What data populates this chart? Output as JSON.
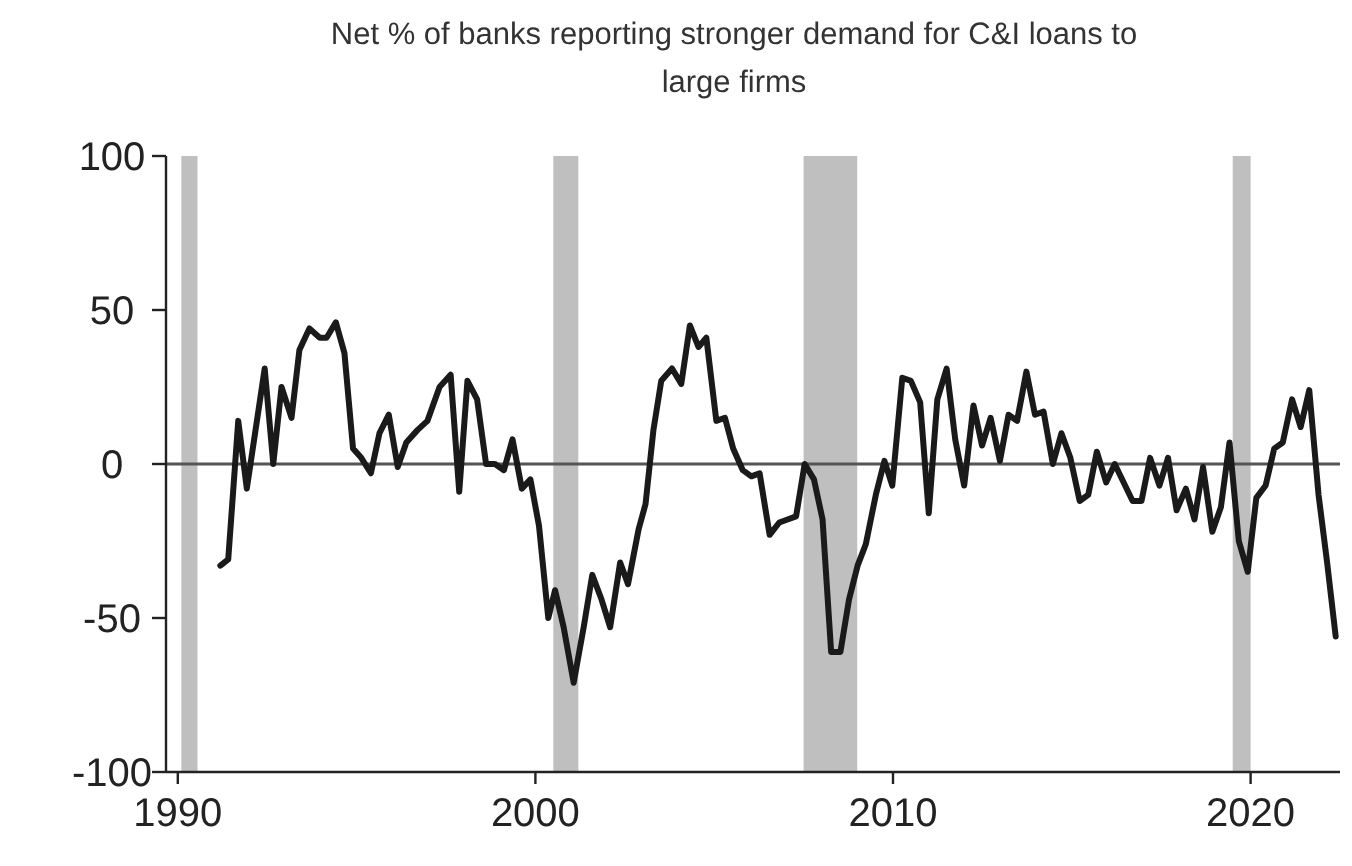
{
  "chart_data": {
    "type": "line",
    "title": "Net % of banks reporting stronger demand for C&I loans to large firms",
    "x": [
      1991.19,
      1991.41,
      1991.69,
      1991.93,
      1992.43,
      1992.67,
      1992.9,
      1993.18,
      1993.4,
      1993.68,
      1993.97,
      1994.16,
      1994.42,
      1994.66,
      1994.9,
      1995.13,
      1995.4,
      1995.64,
      1995.9,
      1996.15,
      1996.39,
      1996.7,
      1996.98,
      1997.32,
      1997.63,
      1997.87,
      1998.1,
      1998.37,
      1998.62,
      1998.87,
      1999.12,
      1999.36,
      1999.62,
      1999.86,
      2000.1,
      2000.36,
      2000.55,
      2000.79,
      2001.07,
      2001.35,
      2001.59,
      2001.85,
      2002.09,
      2002.37,
      2002.59,
      2002.89,
      2003.08,
      2003.3,
      2003.52,
      2003.82,
      2004.08,
      2004.32,
      2004.56,
      2004.78,
      2005.06,
      2005.3,
      2005.53,
      2005.8,
      2006.04,
      2006.27,
      2006.55,
      2006.82,
      2007.05,
      2007.29,
      2007.53,
      2007.79,
      2008.03,
      2008.27,
      2008.53,
      2008.77,
      2009.01,
      2009.24,
      2009.52,
      2009.76,
      2009.98,
      2010.26,
      2010.5,
      2010.76,
      2011.0,
      2011.24,
      2011.5,
      2011.74,
      2011.99,
      2012.25,
      2012.49,
      2012.73,
      2012.99,
      2013.23,
      2013.47,
      2013.73,
      2013.97,
      2014.21,
      2014.47,
      2014.71,
      2014.96,
      2015.22,
      2015.46,
      2015.7,
      2015.96,
      2016.2,
      2016.45,
      2016.7,
      2016.95,
      2017.19,
      2017.45,
      2017.69,
      2017.93,
      2018.19,
      2018.43,
      2018.67,
      2018.93,
      2019.17,
      2019.41,
      2019.67,
      2019.92,
      2020.16,
      2020.42,
      2020.66,
      2020.9,
      2021.16,
      2021.4,
      2021.64,
      2021.9,
      2022.14,
      2022.38
    ],
    "series": [
      {
        "color": "#1a1a1a",
        "values": [
          -33,
          -31,
          14,
          -8,
          31,
          0,
          25,
          15,
          37,
          44,
          41,
          41,
          46,
          36,
          5,
          2,
          -3,
          10,
          16,
          -1,
          7,
          11,
          14,
          25,
          29,
          -9,
          27,
          21,
          0,
          0,
          -2,
          8,
          -8,
          -5,
          -20,
          -50,
          -41,
          -53,
          -71,
          -53,
          -36,
          -44,
          -53,
          -32,
          -39,
          -21,
          -13,
          11,
          27,
          31,
          26,
          45,
          38,
          41,
          14,
          15,
          5,
          -2,
          -4,
          -3,
          -23,
          -19,
          -18,
          -17,
          0,
          -5,
          -18,
          -61,
          -61,
          -44,
          -33,
          -26,
          -10,
          1,
          -7,
          28,
          27,
          20,
          -16,
          21,
          31,
          8,
          -7,
          19,
          6,
          15,
          1,
          16,
          14,
          30,
          16,
          17,
          0,
          10,
          2,
          -12,
          -10,
          4,
          -6,
          0,
          -6,
          -12,
          -12,
          2,
          -7,
          2,
          -15,
          -8,
          -18,
          -1,
          -22,
          -14,
          7,
          -25,
          -35,
          -11,
          -7,
          5,
          7,
          21,
          12,
          24,
          -10,
          -32,
          -56
        ]
      }
    ],
    "xlim": [
      1989.67,
      2022.5
    ],
    "ylim": [
      -100,
      100
    ],
    "xticks": [
      1990,
      2000,
      2010,
      2020
    ],
    "yticks": [
      -100,
      -50,
      0,
      50,
      100
    ],
    "grid": false,
    "line_style": "solid",
    "marker": "none",
    "ref_lines": [
      {
        "axis": "y",
        "value": 0,
        "color": "#555555"
      }
    ],
    "bands": [
      {
        "axis": "x",
        "from": 1990.1,
        "to": 1990.55,
        "color": "#bfbfbf"
      },
      {
        "axis": "x",
        "from": 2000.5,
        "to": 2001.2,
        "color": "#bfbfbf"
      },
      {
        "axis": "x",
        "from": 2007.5,
        "to": 2009.0,
        "color": "#bfbfbf"
      },
      {
        "axis": "x",
        "from": 2019.5,
        "to": 2020.0,
        "color": "#bfbfbf"
      }
    ]
  }
}
